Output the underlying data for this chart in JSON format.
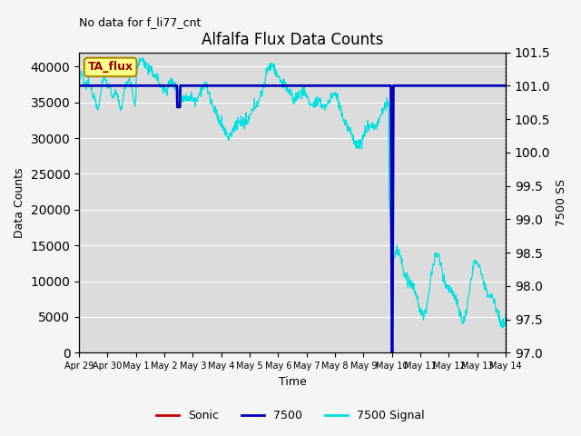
{
  "title": "Alfalfa Flux Data Counts",
  "no_data_text": "No data for f_li77_cnt",
  "ylabel_left": "Data Counts",
  "ylabel_right": "7500 SS",
  "xlabel": "Time",
  "legend_label_box": "TA_flux",
  "ylim_left": [
    0,
    42000
  ],
  "ylim_right": [
    97.0,
    101.5
  ],
  "yticks_left": [
    0,
    5000,
    10000,
    15000,
    20000,
    25000,
    30000,
    35000,
    40000
  ],
  "yticks_right": [
    97.0,
    97.5,
    98.0,
    98.5,
    99.0,
    99.5,
    100.0,
    100.5,
    101.0,
    101.5
  ],
  "xtick_labels": [
    "Apr 29",
    "Apr 30",
    "May 1",
    "May 2",
    "May 3",
    "May 4",
    "May 5",
    "May 6",
    "May 7",
    "May 8",
    "May 9",
    "May 10",
    "May 11",
    "May 12",
    "May 13",
    "May 14"
  ],
  "background_color": "#dcdcdc",
  "grid_color": "#ffffff",
  "line_7500_color": "#0000bb",
  "line_signal_color": "#00e0e0",
  "line_sonic_color": "#cc0000",
  "legend_box_facecolor": "#ffff88",
  "legend_box_edgecolor": "#aa8800",
  "fig_facecolor": "#f5f5f5"
}
